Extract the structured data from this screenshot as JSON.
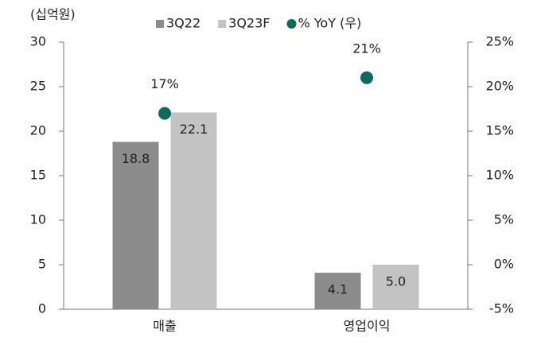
{
  "chart_data": {
    "type": "bar",
    "y_label": "(십억원)",
    "categories": [
      "매출",
      "영업이익"
    ],
    "series": [
      {
        "name": "3Q22",
        "color": "#8c8c8c",
        "values": [
          18.8,
          4.1
        ]
      },
      {
        "name": "3Q23F",
        "color": "#c3c3c3",
        "values": [
          22.1,
          5.0
        ],
        "value_labels": [
          "22.1",
          "5.0"
        ]
      },
      {
        "name": "% YoY (우)",
        "type": "scatter",
        "axis": "y2",
        "color": "#0e6b5b",
        "values": [
          17,
          21
        ],
        "value_labels": [
          "17%",
          "21%"
        ]
      }
    ],
    "ylim": [
      0,
      30
    ],
    "yticks": [
      0,
      5,
      10,
      15,
      20,
      25,
      30
    ],
    "y2lim": [
      -5,
      25
    ],
    "y2ticks": [
      {
        "value": -5,
        "label": "-5%"
      },
      {
        "value": 0,
        "label": "0%"
      },
      {
        "value": 5,
        "label": "5%"
      },
      {
        "value": 10,
        "label": "10%"
      },
      {
        "value": 15,
        "label": "15%"
      },
      {
        "value": 20,
        "label": "20%"
      },
      {
        "value": 25,
        "label": "25%"
      }
    ],
    "legend": "top",
    "grid": false
  }
}
